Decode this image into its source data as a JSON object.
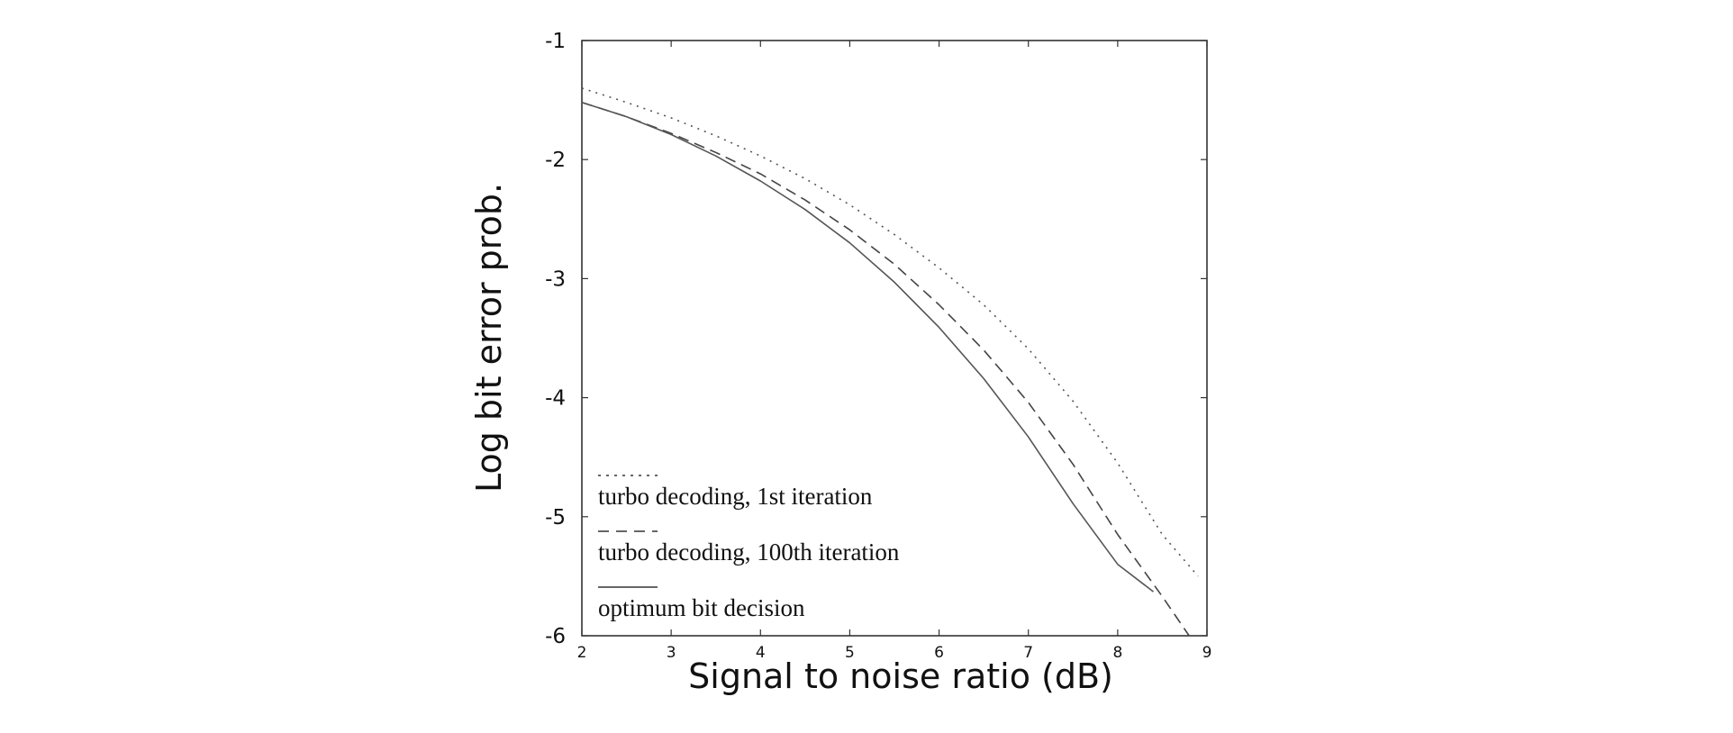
{
  "chart_data": {
    "type": "line",
    "xlabel": "Signal to noise ratio (dB)",
    "ylabel": "Log bit error prob.",
    "xlim": [
      2,
      9
    ],
    "ylim": [
      -6,
      -1
    ],
    "xticks": [
      "2",
      "3",
      "4",
      "5",
      "6",
      "7",
      "8",
      "9"
    ],
    "yticks": [
      "-1",
      "-2",
      "-3",
      "-4",
      "-5",
      "-6"
    ],
    "grid": false,
    "legend_position": "bottom-left",
    "series": [
      {
        "name": "turbo decoding, 1st iteration",
        "style": "dotted",
        "x": [
          2.0,
          2.5,
          3.0,
          3.5,
          4.0,
          4.5,
          5.0,
          5.5,
          6.0,
          6.5,
          7.0,
          7.5,
          8.0,
          8.5,
          8.9
        ],
        "y": [
          -1.4,
          -1.52,
          -1.65,
          -1.8,
          -1.97,
          -2.16,
          -2.38,
          -2.63,
          -2.91,
          -3.22,
          -3.59,
          -4.03,
          -4.55,
          -5.15,
          -5.5
        ]
      },
      {
        "name": "turbo decoding, 100th iteration",
        "style": "dashed",
        "x": [
          2.0,
          2.5,
          3.0,
          3.5,
          4.0,
          4.5,
          5.0,
          5.5,
          6.0,
          6.5,
          7.0,
          7.5,
          8.0,
          8.5,
          8.8
        ],
        "y": [
          -1.52,
          -1.64,
          -1.78,
          -1.94,
          -2.12,
          -2.34,
          -2.59,
          -2.88,
          -3.22,
          -3.6,
          -4.04,
          -4.56,
          -5.15,
          -5.67,
          -6.0
        ]
      },
      {
        "name": "optimum bit decision",
        "style": "solid",
        "x": [
          2.0,
          2.5,
          3.0,
          3.5,
          4.0,
          4.5,
          5.0,
          5.5,
          6.0,
          6.5,
          7.0,
          7.5,
          8.0,
          8.4
        ],
        "y": [
          -1.52,
          -1.64,
          -1.79,
          -1.97,
          -2.18,
          -2.42,
          -2.7,
          -3.03,
          -3.41,
          -3.84,
          -4.33,
          -4.89,
          -5.4,
          -5.63
        ]
      }
    ]
  }
}
